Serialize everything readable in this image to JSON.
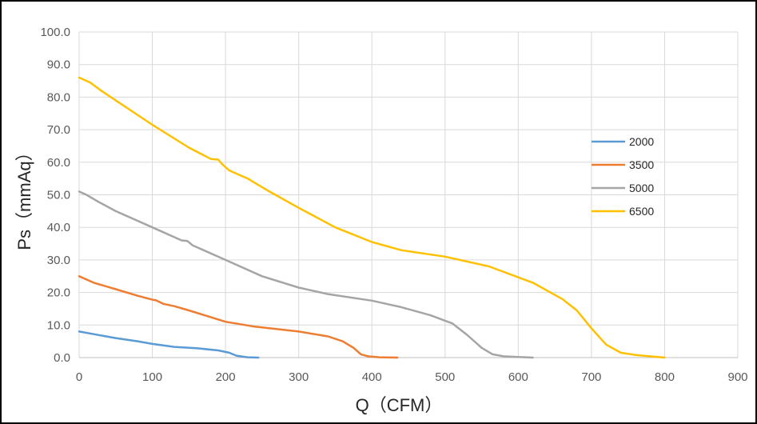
{
  "chart_data": {
    "type": "line",
    "title": "",
    "xlabel": "Q（CFM）",
    "ylabel": "Ps（mmAq）",
    "xlim": [
      0,
      900
    ],
    "ylim": [
      0,
      100
    ],
    "xticks": [
      "0",
      "100",
      "200",
      "300",
      "400",
      "500",
      "600",
      "700",
      "800",
      "900"
    ],
    "yticks": [
      "0.0",
      "10.0",
      "20.0",
      "30.0",
      "40.0",
      "50.0",
      "60.0",
      "70.0",
      "80.0",
      "90.0",
      "100.0"
    ],
    "grid": true,
    "legend_position": "right",
    "series": [
      {
        "name": "2000",
        "color": "#5B9BD5",
        "x": [
          0,
          20,
          50,
          80,
          100,
          130,
          160,
          190,
          205,
          215,
          230,
          245
        ],
        "y": [
          8.0,
          7.2,
          6.0,
          5.0,
          4.2,
          3.3,
          2.9,
          2.2,
          1.5,
          0.6,
          0.1,
          0.0
        ]
      },
      {
        "name": "3500",
        "color": "#ED7D31",
        "x": [
          0,
          20,
          50,
          80,
          100,
          105,
          115,
          130,
          150,
          200,
          240,
          300,
          340,
          360,
          375,
          385,
          395,
          410,
          435
        ],
        "y": [
          25.0,
          23.0,
          21.0,
          19.0,
          17.8,
          17.6,
          16.5,
          15.8,
          14.5,
          11.0,
          9.5,
          8.0,
          6.5,
          5.0,
          3.0,
          1.0,
          0.4,
          0.1,
          0.0
        ]
      },
      {
        "name": "5000",
        "color": "#A5A5A5",
        "x": [
          0,
          10,
          25,
          50,
          100,
          140,
          148,
          155,
          170,
          200,
          250,
          300,
          340,
          400,
          440,
          480,
          510,
          530,
          550,
          565,
          580,
          600,
          620
        ],
        "y": [
          51.0,
          50.0,
          48.0,
          45.0,
          40.0,
          36.0,
          35.8,
          34.5,
          33.0,
          30.0,
          25.0,
          21.5,
          19.5,
          17.5,
          15.5,
          13.0,
          10.5,
          7.0,
          3.0,
          1.0,
          0.4,
          0.2,
          0.0
        ]
      },
      {
        "name": "6500",
        "color": "#FFC000",
        "x": [
          0,
          15,
          30,
          50,
          100,
          150,
          180,
          190,
          195,
          205,
          230,
          260,
          300,
          350,
          400,
          440,
          500,
          560,
          620,
          660,
          680,
          700,
          720,
          740,
          760,
          800
        ],
        "y": [
          86.0,
          84.5,
          82.0,
          79.0,
          71.5,
          64.5,
          61.0,
          60.8,
          59.5,
          57.5,
          55.0,
          51.0,
          46.0,
          40.0,
          35.5,
          33.0,
          31.0,
          28.0,
          23.0,
          18.0,
          14.5,
          9.0,
          4.0,
          1.5,
          0.8,
          0.0
        ]
      }
    ]
  }
}
